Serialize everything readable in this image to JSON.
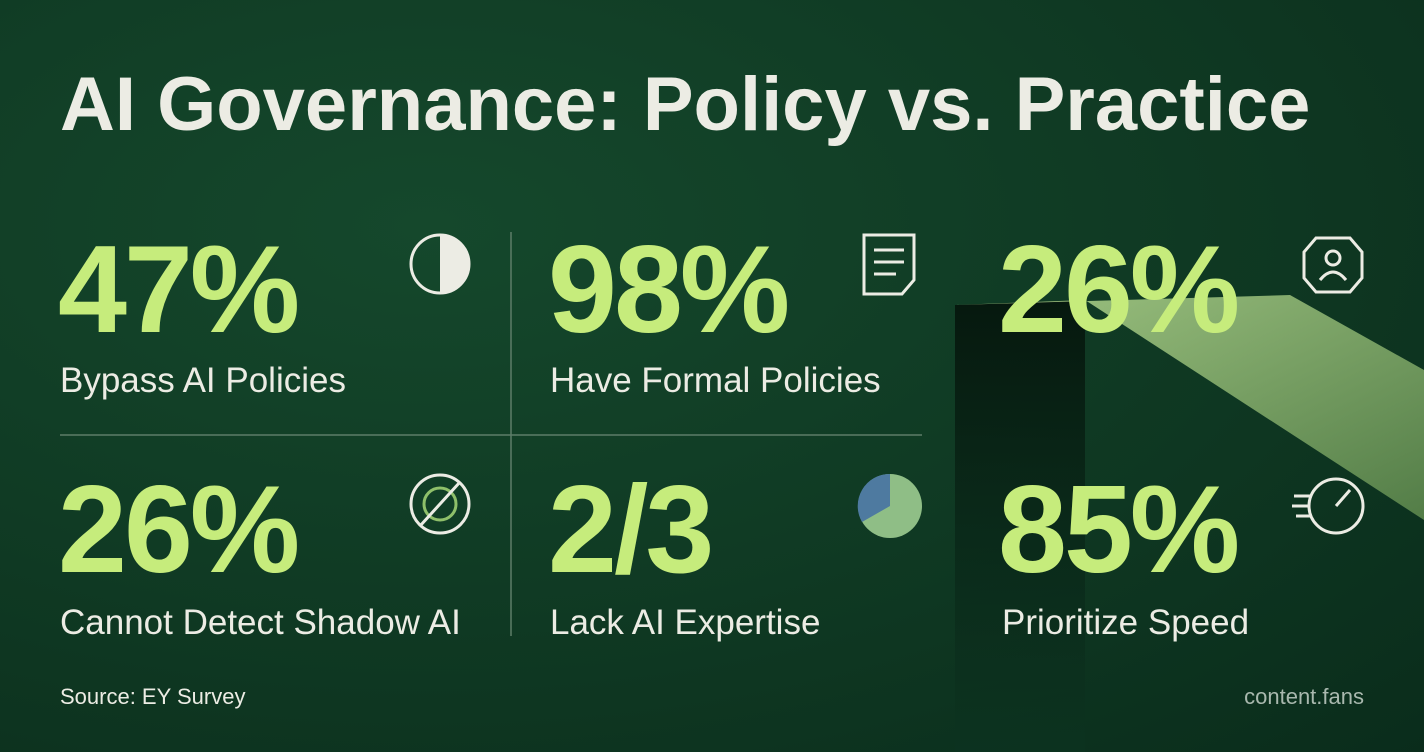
{
  "header": {
    "title": "AI Governance: Policy vs. Practice"
  },
  "stats": [
    {
      "value": "47%",
      "label": "Bypass AI Policies"
    },
    {
      "value": "98%",
      "label": "Have Formal Policies"
    },
    {
      "value": "26%"
    },
    {
      "value": "26%",
      "label": "Cannot Detect Shadow AI"
    },
    {
      "value": "2/3",
      "label": "Lack AI Expertise"
    },
    {
      "value": "85%",
      "label": "Prioritize Speed"
    }
  ],
  "footer": {
    "source": "Source: EY Survey",
    "brand": "content.fans"
  }
}
